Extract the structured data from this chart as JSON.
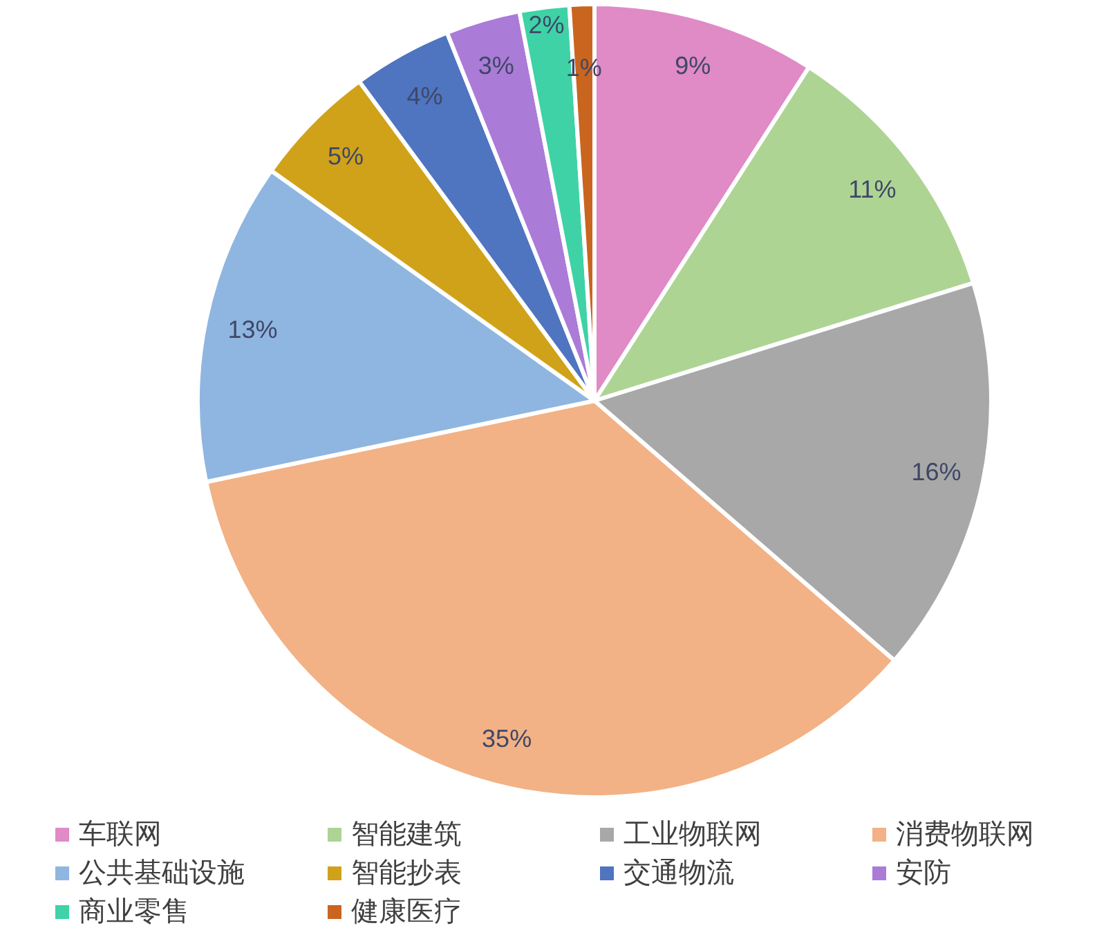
{
  "chart_data": {
    "type": "pie",
    "categories": [
      "车联网",
      "智能建筑",
      "工业物联网",
      "消费物联网",
      "公共基础设施",
      "智能抄表",
      "交通物流",
      "安防",
      "商业零售",
      "健康医疗"
    ],
    "values": [
      9,
      11,
      16,
      35,
      13,
      5,
      4,
      3,
      2,
      1
    ],
    "colors": [
      "#e08ac6",
      "#aed494",
      "#a8a8a8",
      "#f2b285",
      "#8fb6e0",
      "#cfa219",
      "#4f74c0",
      "#ab7bd8",
      "#3fd2a6",
      "#c9651f"
    ],
    "value_labels": [
      "9%",
      "11%",
      "16%",
      "35%",
      "13%",
      "5%",
      "4%",
      "3%",
      "2%",
      "1%"
    ],
    "legend": "bottom"
  }
}
